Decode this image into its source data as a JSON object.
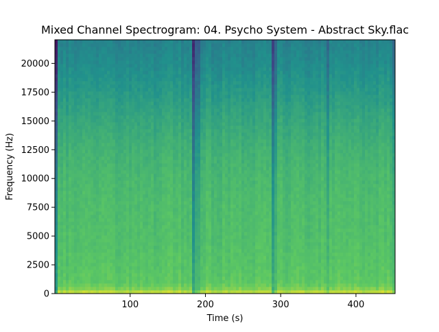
{
  "chart_data": {
    "type": "heatmap",
    "title": "Mixed Channel Spectrogram: 04. Psycho System - Abstract Sky.flac",
    "xlabel": "Time (s)",
    "ylabel": "Frequency (Hz)",
    "xlim": [
      0,
      452
    ],
    "ylim": [
      0,
      22050
    ],
    "x_ticks": [
      100,
      200,
      300,
      400
    ],
    "x_tick_labels": [
      "100",
      "200",
      "300",
      "400"
    ],
    "y_ticks": [
      0,
      2500,
      5000,
      7500,
      10000,
      12500,
      15000,
      17500,
      20000
    ],
    "y_tick_labels": [
      "0",
      "2500",
      "5000",
      "7500",
      "10000",
      "12500",
      "15000",
      "17500",
      "20000"
    ],
    "colormap": "viridis",
    "grid": false,
    "legend": "none",
    "intensity_profile": {
      "frequency_hz": [
        0,
        200,
        500,
        1000,
        2500,
        5000,
        7500,
        10000,
        12500,
        15000,
        17500,
        20000,
        22050
      ],
      "relative_level": [
        0.93,
        0.88,
        0.78,
        0.74,
        0.72,
        0.7,
        0.69,
        0.67,
        0.64,
        0.6,
        0.55,
        0.5,
        0.47
      ]
    },
    "quiet_segments": [
      {
        "start_s": 0,
        "end_s": 3,
        "depth": 0.35
      },
      {
        "start_s": 183,
        "end_s": 187,
        "depth": 0.3
      },
      {
        "start_s": 187,
        "end_s": 192,
        "depth": 0.16
      },
      {
        "start_s": 288,
        "end_s": 292,
        "depth": 0.26
      },
      {
        "start_s": 292,
        "end_s": 296,
        "depth": 0.14
      },
      {
        "start_s": 362,
        "end_s": 365,
        "depth": 0.13
      },
      {
        "start_s": 447,
        "end_s": 452,
        "depth": 0.12
      }
    ]
  }
}
